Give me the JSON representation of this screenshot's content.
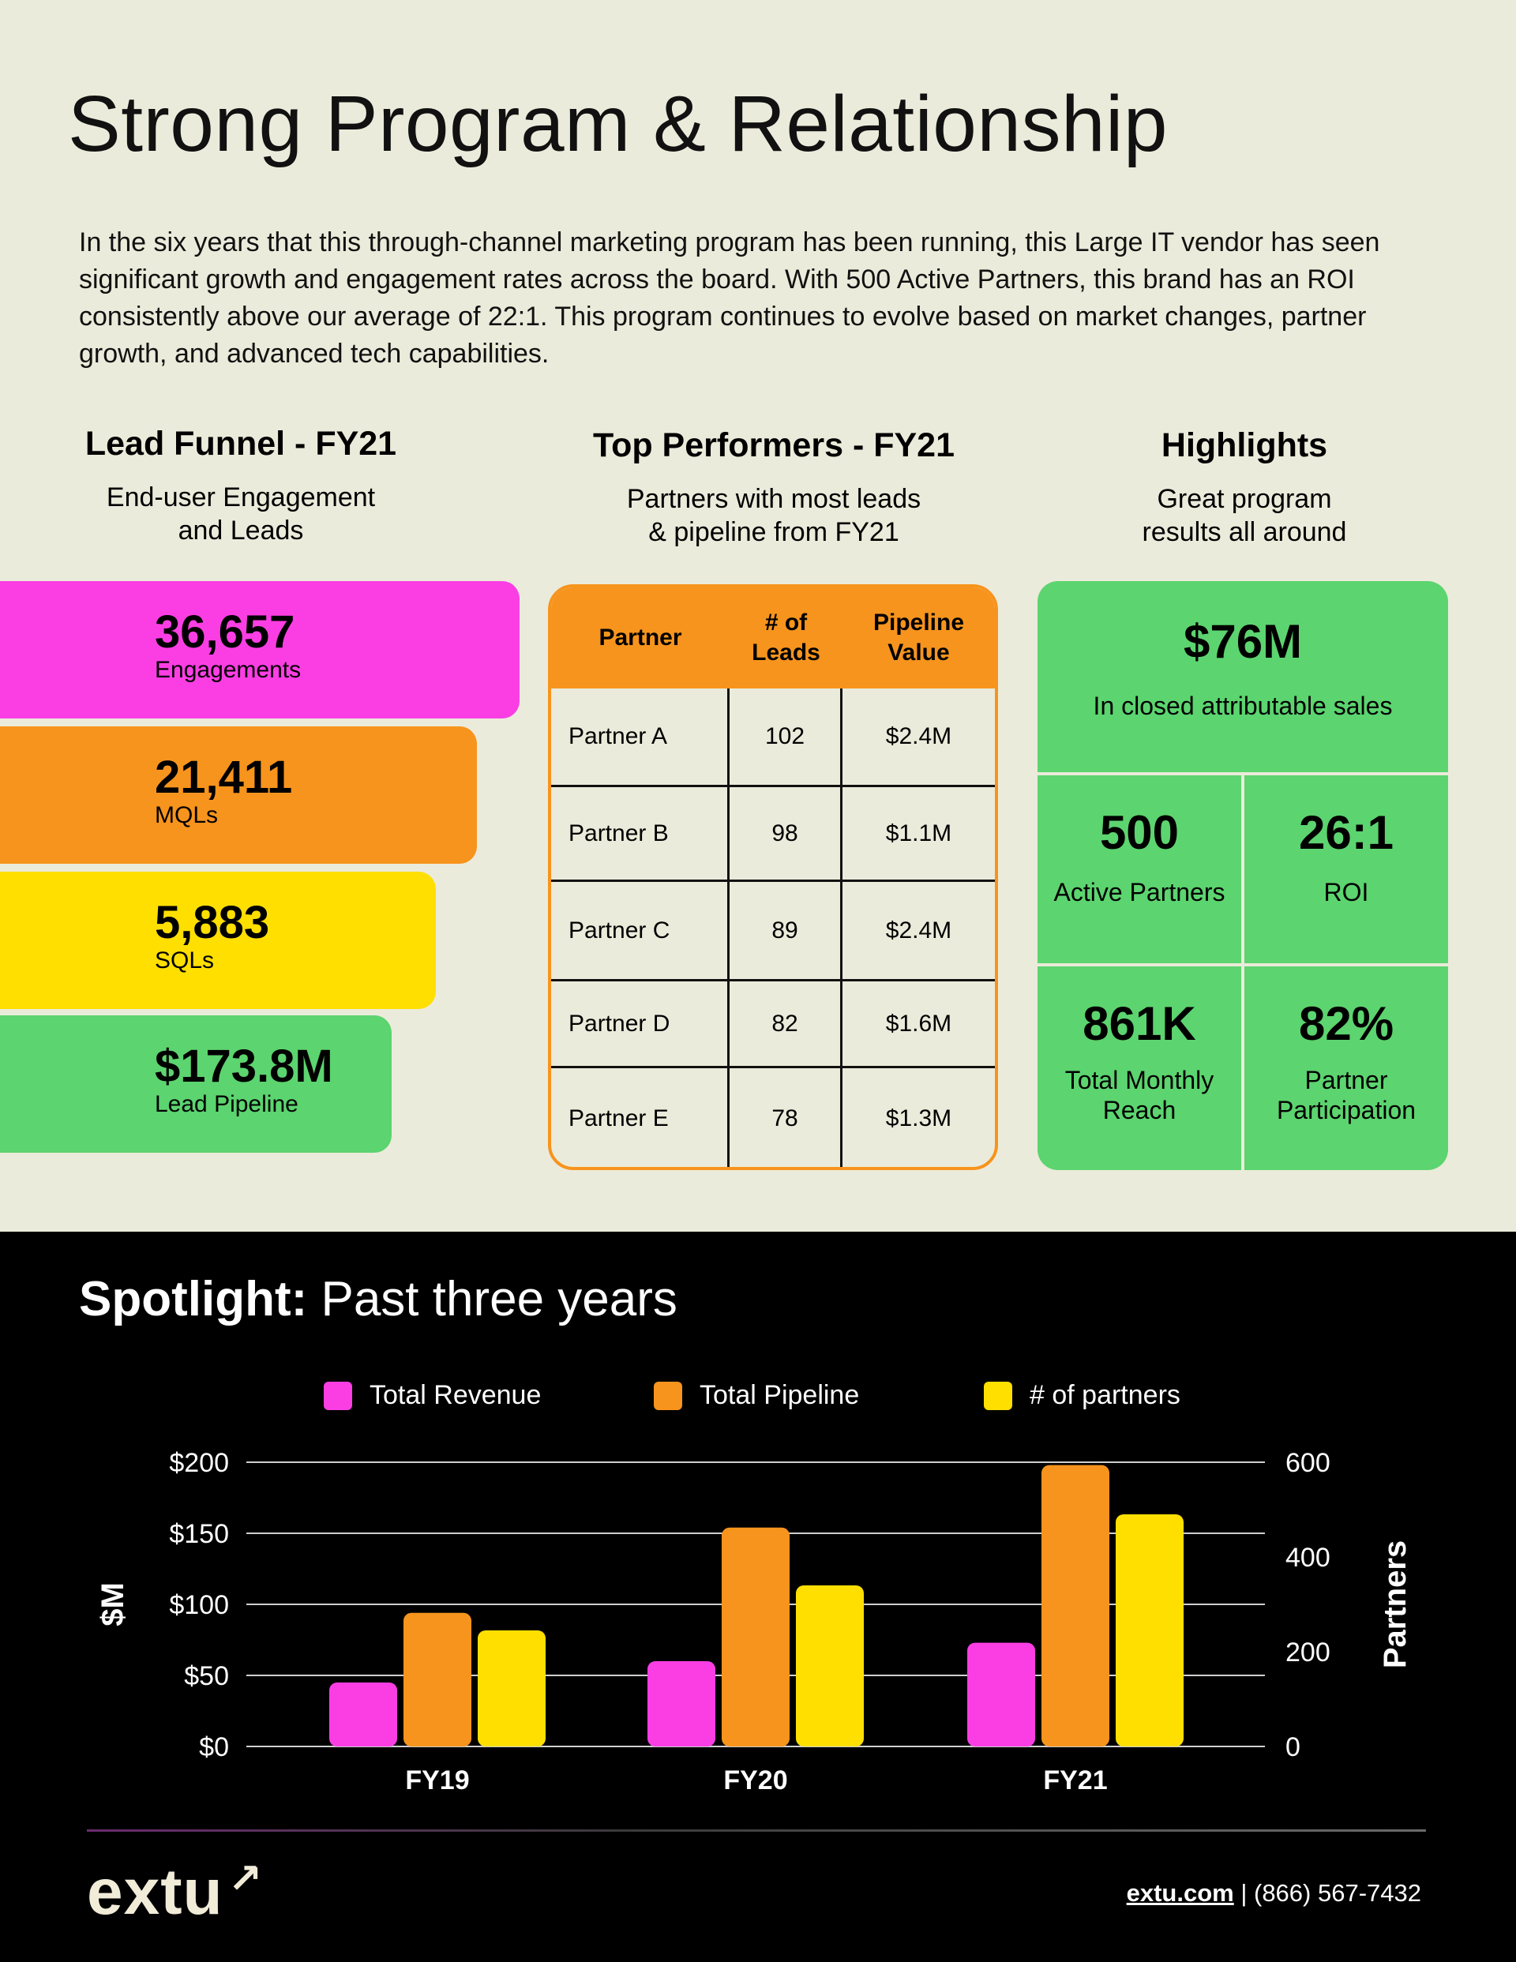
{
  "title": "Strong Program & Relationship",
  "intro": "In the six years that this through-channel marketing program has been running, this Large IT vendor has seen significant growth and engagement rates across the board. With 500 Active Partners, this brand has an ROI consistently above our average of 22:1. This program continues to evolve based on market changes, partner growth, and advanced tech capabilities.",
  "funnel": {
    "heading": "Lead Funnel - FY21",
    "subheading": "End-user Engagement and Leads",
    "bars": [
      {
        "value": "36,657",
        "label": "Engagements",
        "color": "#fb3ee4"
      },
      {
        "value": "21,411",
        "label": "MQLs",
        "color": "#f7941d"
      },
      {
        "value": "5,883",
        "label": "SQLs",
        "color": "#ffdf00"
      },
      {
        "value": "$173.8M",
        "label": "Lead Pipeline",
        "color": "#5cd46f"
      }
    ]
  },
  "performers": {
    "heading": "Top Performers - FY21",
    "subheading": "Partners with most leads & pipeline from FY21",
    "columns": [
      "Partner",
      "# of Leads",
      "Pipeline Value"
    ],
    "rows": [
      [
        "Partner A",
        "102",
        "$2.4M"
      ],
      [
        "Partner B",
        "98",
        "$1.1M"
      ],
      [
        "Partner C",
        "89",
        "$2.4M"
      ],
      [
        "Partner D",
        "82",
        "$1.6M"
      ],
      [
        "Partner E",
        "78",
        "$1.3M"
      ]
    ]
  },
  "highlights": {
    "heading": "Highlights",
    "subheading": "Great program results all around",
    "top": {
      "value": "$76M",
      "label": "In closed attributable sales"
    },
    "cells": [
      {
        "value": "500",
        "label": "Active Partners"
      },
      {
        "value": "26:1",
        "label": "ROI"
      },
      {
        "value": "861K",
        "label": "Total Monthly Reach"
      },
      {
        "value": "82%",
        "label": "Partner Participation"
      }
    ]
  },
  "spotlight": {
    "bold": "Spotlight:",
    "rest": " Past three years"
  },
  "chart_data": {
    "type": "bar",
    "categories": [
      "FY19",
      "FY20",
      "FY21"
    ],
    "series": [
      {
        "name": "Total Revenue",
        "axis": "left",
        "color": "#fb3ee4",
        "values": [
          45,
          60,
          73
        ]
      },
      {
        "name": "Total Pipeline",
        "axis": "left",
        "color": "#f7941d",
        "values": [
          94,
          154,
          198
        ]
      },
      {
        "name": "# of partners",
        "axis": "right",
        "color": "#ffdf00",
        "values": [
          245,
          340,
          490
        ]
      }
    ],
    "ylabel": "$M",
    "ylabel_right": "Partners",
    "ylim": [
      0,
      200
    ],
    "ylim_right": [
      0,
      600
    ],
    "yticks": [
      "$0",
      "$50",
      "$100",
      "$150",
      "$200"
    ],
    "yticks_right": [
      "0",
      "200",
      "400",
      "600"
    ],
    "grid": true,
    "legend": "top"
  },
  "footer": {
    "logo": "extu",
    "link": "extu.com",
    "phone": " | (866) 567-7432"
  }
}
